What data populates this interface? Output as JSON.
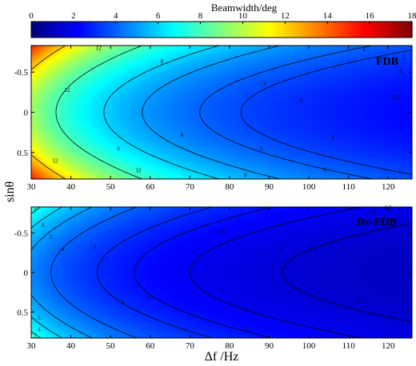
{
  "figure": {
    "colorbar": {
      "title": "Beamwidth/deg",
      "ticks": [
        "0",
        "2",
        "4",
        "6",
        "8",
        "10",
        "12",
        "14",
        "16",
        "18"
      ],
      "range": [
        0,
        18
      ],
      "colormap": "jet"
    },
    "ylabel": "sinθ",
    "xlabel": "Δf /Hz"
  },
  "chart_data": [
    {
      "type": "heatmap",
      "title": "FDB",
      "xlabel": "Δf /Hz",
      "ylabel": "sinθ",
      "xlim": [
        30,
        126
      ],
      "ylim": [
        -0.83,
        0.83
      ],
      "y_inverted": true,
      "xticks": [
        "30",
        "40",
        "50",
        "60",
        "70",
        "80",
        "90",
        "100",
        "110",
        "120"
      ],
      "yticks": [
        "-0.5",
        "0",
        "0.5"
      ],
      "zlim": [
        0,
        18
      ],
      "model": {
        "a": 290,
        "p": 0.87
      },
      "contour_levels": [
        3.5,
        4,
        5,
        6,
        8,
        12
      ],
      "contour_labels": [
        {
          "text": "12",
          "x": 39,
          "y": -0.28
        },
        {
          "text": "12",
          "x": 36,
          "y": 0.6
        },
        {
          "text": "12",
          "x": 57,
          "y": 0.72
        },
        {
          "text": "12",
          "x": 47,
          "y": -0.8
        },
        {
          "text": "8",
          "x": 63,
          "y": -0.63
        },
        {
          "text": "8",
          "x": 52,
          "y": 0.45
        },
        {
          "text": "8",
          "x": 84,
          "y": 0.78
        },
        {
          "text": "6",
          "x": 89,
          "y": -0.36
        },
        {
          "text": "6",
          "x": 68,
          "y": 0.28
        },
        {
          "text": "6",
          "x": 104,
          "y": 0.71
        },
        {
          "text": "6",
          "x": 114,
          "y": -0.78
        },
        {
          "text": "5",
          "x": 98,
          "y": -0.15
        },
        {
          "text": "5",
          "x": 88,
          "y": 0.45
        },
        {
          "text": "5",
          "x": 123,
          "y": 0.73
        },
        {
          "text": "5",
          "x": 124,
          "y": -0.68
        },
        {
          "text": "4",
          "x": 106,
          "y": 0.31
        },
        {
          "text": "4",
          "x": 123,
          "y": -0.51
        },
        {
          "text": "3.5",
          "x": 122,
          "y": -0.19
        }
      ]
    },
    {
      "type": "heatmap",
      "title": "Dv-FDB",
      "xlabel": "Δf /Hz",
      "ylabel": "sinθ",
      "xlim": [
        30,
        126
      ],
      "ylim": [
        -0.83,
        0.83
      ],
      "y_inverted": true,
      "xticks": [
        "30",
        "40",
        "50",
        "60",
        "70",
        "80",
        "90",
        "100",
        "110",
        "120"
      ],
      "yticks": [
        "-0.5",
        "0",
        "0.5"
      ],
      "zlim": [
        0,
        18
      ],
      "model": {
        "a": 140,
        "p": 0.9
      },
      "contour_levels": [
        1.5,
        2,
        2.5,
        3,
        4,
        5,
        6,
        7
      ],
      "contour_labels": [
        {
          "text": "7",
          "x": 31,
          "y": -0.78
        },
        {
          "text": "6",
          "x": 33,
          "y": -0.6
        },
        {
          "text": "5",
          "x": 35,
          "y": -0.45
        },
        {
          "text": "4",
          "x": 38,
          "y": -0.3
        },
        {
          "text": "3",
          "x": 46,
          "y": -0.33
        },
        {
          "text": "3",
          "x": 53,
          "y": 0.38
        },
        {
          "text": "2.5",
          "x": 78,
          "y": -0.52
        },
        {
          "text": "2.5",
          "x": 60,
          "y": 0.32
        },
        {
          "text": "2.5",
          "x": 84,
          "y": 0.72
        },
        {
          "text": "2",
          "x": 93,
          "y": -0.3
        },
        {
          "text": "2",
          "x": 84,
          "y": 0.47
        },
        {
          "text": "2",
          "x": 105,
          "y": 0.72
        },
        {
          "text": "1.5",
          "x": 116,
          "y": -0.78
        },
        {
          "text": "1.5",
          "x": 113,
          "y": 0.35
        },
        {
          "text": "2.5",
          "x": 120,
          "y": -0.82
        },
        {
          "text": "4",
          "x": 32,
          "y": 0.72
        },
        {
          "text": "5",
          "x": 32,
          "y": 0.57
        },
        {
          "text": "7",
          "x": 31,
          "y": 0.8
        }
      ]
    }
  ]
}
